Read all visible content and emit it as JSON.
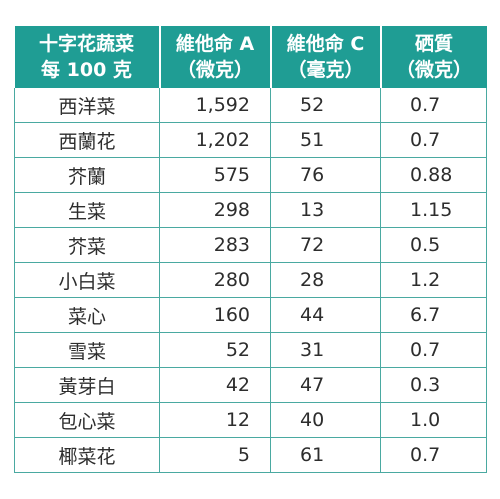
{
  "header": {
    "col1": [
      "十字花蔬菜",
      "每 100 克"
    ],
    "col2": [
      "維他命 A",
      "（微克）"
    ],
    "col3": [
      "維他命 C",
      "（毫克）"
    ],
    "col4": [
      "硒質",
      "（微克）"
    ]
  },
  "rows": [
    {
      "name": "西洋菜",
      "vitamin_a": "1,592",
      "vitamin_c": "52",
      "selenium": "0.7"
    },
    {
      "name": "西蘭花",
      "vitamin_a": "1,202",
      "vitamin_c": "51",
      "selenium": "0.7"
    },
    {
      "name": "芥蘭",
      "vitamin_a": "575",
      "vitamin_c": "76",
      "selenium": "0.88"
    },
    {
      "name": "生菜",
      "vitamin_a": "298",
      "vitamin_c": "13",
      "selenium": "1.15"
    },
    {
      "name": "芥菜",
      "vitamin_a": "283",
      "vitamin_c": "72",
      "selenium": "0.5"
    },
    {
      "name": "小白菜",
      "vitamin_a": "280",
      "vitamin_c": "28",
      "selenium": "1.2"
    },
    {
      "name": "菜心",
      "vitamin_a": "160",
      "vitamin_c": "44",
      "selenium": "6.7"
    },
    {
      "name": "雪菜",
      "vitamin_a": "52",
      "vitamin_c": "31",
      "selenium": "0.7"
    },
    {
      "name": "黃芽白",
      "vitamin_a": "42",
      "vitamin_c": "47",
      "selenium": "0.3"
    },
    {
      "name": "包心菜",
      "vitamin_a": "12",
      "vitamin_c": "40",
      "selenium": "1.0"
    },
    {
      "name": "椰菜花",
      "vitamin_a": "5",
      "vitamin_c": "61",
      "selenium": "0.7"
    }
  ],
  "colors": {
    "header_bg": "#1f9d94",
    "header_text": "#ffffff",
    "border": "#4aa9a1",
    "body_text": "#2d2d2d"
  }
}
